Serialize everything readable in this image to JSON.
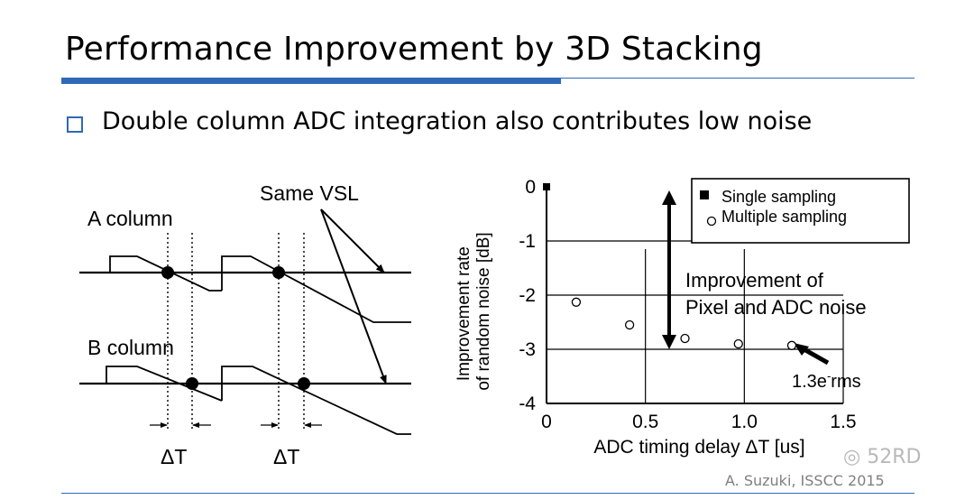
{
  "slide": {
    "title": "Performance Improvement by 3D Stacking",
    "bullet": "Double column ADC integration also contributes low noise",
    "credit": "A. Suzuki, ISSCC 2015",
    "watermark": "52RD"
  },
  "diagram": {
    "a_column": "A column",
    "b_column": "B column",
    "same_vsl": "Same VSL",
    "delta_t_1": "ΔT",
    "delta_t_2": "ΔT"
  },
  "colors": {
    "accent": "#2f69b8",
    "ink": "#000000",
    "grid": "#000000"
  },
  "chart_data": {
    "type": "scatter",
    "xlabel": "ADC timing delay ΔT [us]",
    "ylabel_line1": "Improvement rate",
    "ylabel_line2": "of random noise [dB]",
    "xlim": [
      0,
      1.5
    ],
    "ylim": [
      -4,
      0
    ],
    "xticks": [
      "0",
      "0.5",
      "1.0",
      "1.5"
    ],
    "yticks": [
      "0",
      "-1",
      "-2",
      "-3",
      "-4"
    ],
    "grid": true,
    "legend_position": "top-right",
    "series": [
      {
        "name": "Single sampling",
        "marker": "filled-square",
        "points": [
          {
            "x": 0,
            "y": 0
          }
        ]
      },
      {
        "name": "Multiple sampling",
        "marker": "open-circle",
        "points": [
          {
            "x": 0.15,
            "y": -2.13
          },
          {
            "x": 0.42,
            "y": -2.55
          },
          {
            "x": 0.7,
            "y": -2.8
          },
          {
            "x": 0.97,
            "y": -2.9
          },
          {
            "x": 1.24,
            "y": -2.93
          }
        ]
      }
    ],
    "annotations": {
      "improvement_line1": "Improvement of",
      "improvement_line2": "Pixel and ADC noise",
      "improvement_arrow_from_y": 0,
      "improvement_arrow_to_y": -3,
      "improvement_arrow_x": 0.62,
      "noise_value": "1.3e",
      "noise_sup": "-",
      "noise_unit": "rms"
    }
  }
}
